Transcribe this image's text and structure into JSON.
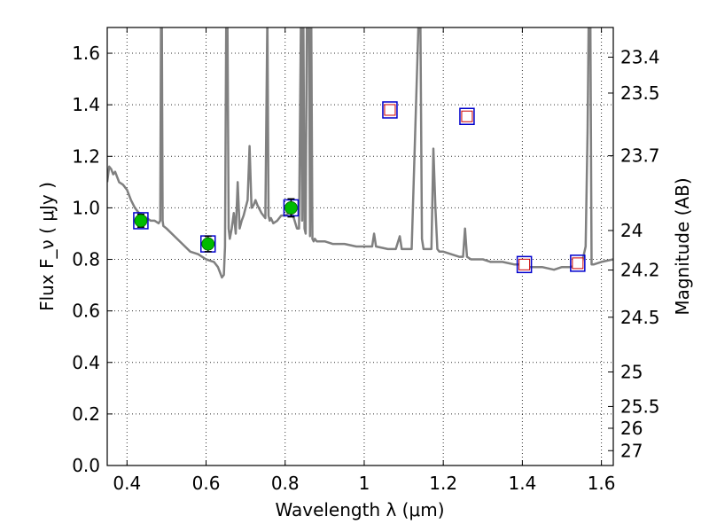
{
  "chart_data": {
    "type": "line",
    "xlabel": "Wavelength  λ (μm)",
    "ylabel": "Flux  F_ν  ( μJy )",
    "y2label": "Magnitude (AB)",
    "xlim": [
      0.35,
      1.63
    ],
    "ylim": [
      0.0,
      1.7
    ],
    "grid": true,
    "x_ticks": [
      0.4,
      0.6,
      0.8,
      1.0,
      1.2,
      1.4,
      1.6
    ],
    "x_tick_labels": [
      "0.4",
      "0.6",
      "0.8",
      "1",
      "1.2",
      "1.4",
      "1.6"
    ],
    "y_ticks": [
      0.0,
      0.2,
      0.4,
      0.6,
      0.8,
      1.0,
      1.2,
      1.4,
      1.6
    ],
    "y_tick_labels": [
      "0.0",
      "0.2",
      "0.4",
      "0.6",
      "0.8",
      "1.0",
      "1.2",
      "1.4",
      "1.6"
    ],
    "y2_ticks": [
      23.4,
      23.5,
      23.7,
      24,
      24.2,
      24.5,
      25,
      25.5,
      26,
      27
    ],
    "y2_tick_labels": [
      "23.4",
      "23.5",
      "23.7",
      "24",
      "24.2",
      "24.5",
      "25",
      "25.5",
      "26",
      "27"
    ],
    "colors": {
      "sed": "#808080",
      "observed_marker": "#00bb00",
      "observed_error": "#000000",
      "model_box": "#0000cc",
      "model_inner": "#cc0000"
    },
    "sed_line": {
      "x": [
        0.35,
        0.355,
        0.36,
        0.365,
        0.37,
        0.38,
        0.39,
        0.4,
        0.41,
        0.42,
        0.43,
        0.44,
        0.45,
        0.46,
        0.47,
        0.48,
        0.484,
        0.486,
        0.488,
        0.49,
        0.492,
        0.5,
        0.52,
        0.54,
        0.56,
        0.58,
        0.6,
        0.62,
        0.63,
        0.64,
        0.645,
        0.648,
        0.651,
        0.654,
        0.657,
        0.66,
        0.665,
        0.67,
        0.675,
        0.68,
        0.685,
        0.69,
        0.695,
        0.7,
        0.705,
        0.71,
        0.715,
        0.72,
        0.725,
        0.73,
        0.74,
        0.75,
        0.755,
        0.758,
        0.761,
        0.764,
        0.77,
        0.78,
        0.79,
        0.8,
        0.81,
        0.82,
        0.83,
        0.835,
        0.84,
        0.843,
        0.846,
        0.849,
        0.852,
        0.855,
        0.86,
        0.863,
        0.866,
        0.869,
        0.872,
        0.875,
        0.88,
        0.9,
        0.92,
        0.95,
        0.98,
        1.0,
        1.02,
        1.025,
        1.03,
        1.06,
        1.08,
        1.09,
        1.095,
        1.1,
        1.12,
        1.138,
        1.142,
        1.146,
        1.15,
        1.17,
        1.175,
        1.18,
        1.185,
        1.19,
        1.2,
        1.22,
        1.24,
        1.25,
        1.255,
        1.26,
        1.27,
        1.28,
        1.3,
        1.32,
        1.35,
        1.38,
        1.4,
        1.42,
        1.45,
        1.48,
        1.5,
        1.52,
        1.55,
        1.56,
        1.565,
        1.568,
        1.572,
        1.575,
        1.58,
        1.6,
        1.63
      ],
      "y": [
        1.1,
        1.16,
        1.15,
        1.13,
        1.14,
        1.1,
        1.09,
        1.07,
        1.03,
        1.0,
        0.98,
        0.97,
        0.96,
        0.95,
        0.95,
        0.94,
        0.95,
        1.75,
        1.75,
        0.95,
        0.93,
        0.92,
        0.89,
        0.86,
        0.83,
        0.82,
        0.8,
        0.79,
        0.77,
        0.73,
        0.74,
        0.85,
        1.75,
        1.75,
        0.92,
        0.88,
        0.92,
        0.98,
        0.9,
        1.1,
        0.92,
        0.95,
        0.97,
        1.0,
        1.03,
        1.24,
        1.0,
        1.01,
        1.03,
        1.01,
        0.98,
        0.96,
        1.75,
        0.97,
        0.95,
        0.96,
        0.94,
        0.95,
        0.97,
        0.97,
        0.98,
        0.97,
        0.92,
        0.92,
        1.75,
        0.95,
        1.75,
        0.92,
        0.9,
        1.75,
        1.75,
        0.89,
        1.75,
        0.88,
        0.87,
        0.88,
        0.87,
        0.87,
        0.86,
        0.86,
        0.85,
        0.85,
        0.85,
        0.9,
        0.85,
        0.84,
        0.84,
        0.89,
        0.84,
        0.84,
        0.84,
        1.75,
        1.75,
        0.88,
        0.84,
        0.84,
        1.23,
        1.0,
        0.84,
        0.83,
        0.83,
        0.82,
        0.81,
        0.81,
        0.92,
        0.81,
        0.8,
        0.8,
        0.8,
        0.79,
        0.79,
        0.78,
        0.78,
        0.77,
        0.77,
        0.76,
        0.77,
        0.77,
        0.78,
        0.85,
        1.3,
        1.75,
        1.75,
        0.78,
        0.78,
        0.79,
        0.8
      ]
    },
    "observed_points": [
      {
        "x": 0.435,
        "y": 0.95,
        "err": 0.025
      },
      {
        "x": 0.605,
        "y": 0.86,
        "err": 0.03
      },
      {
        "x": 0.815,
        "y": 1.0,
        "err": 0.035
      }
    ],
    "model_points": [
      {
        "x": 0.435,
        "y": 0.95
      },
      {
        "x": 0.605,
        "y": 0.86
      },
      {
        "x": 0.815,
        "y": 1.0
      },
      {
        "x": 1.065,
        "y": 1.38
      },
      {
        "x": 1.26,
        "y": 1.355
      },
      {
        "x": 1.405,
        "y": 0.78
      },
      {
        "x": 1.54,
        "y": 0.785
      }
    ],
    "upper_limit_points": [
      {
        "x": 1.065,
        "y": 1.38
      },
      {
        "x": 1.26,
        "y": 1.355
      },
      {
        "x": 1.405,
        "y": 0.78
      },
      {
        "x": 1.54,
        "y": 0.785
      }
    ]
  }
}
